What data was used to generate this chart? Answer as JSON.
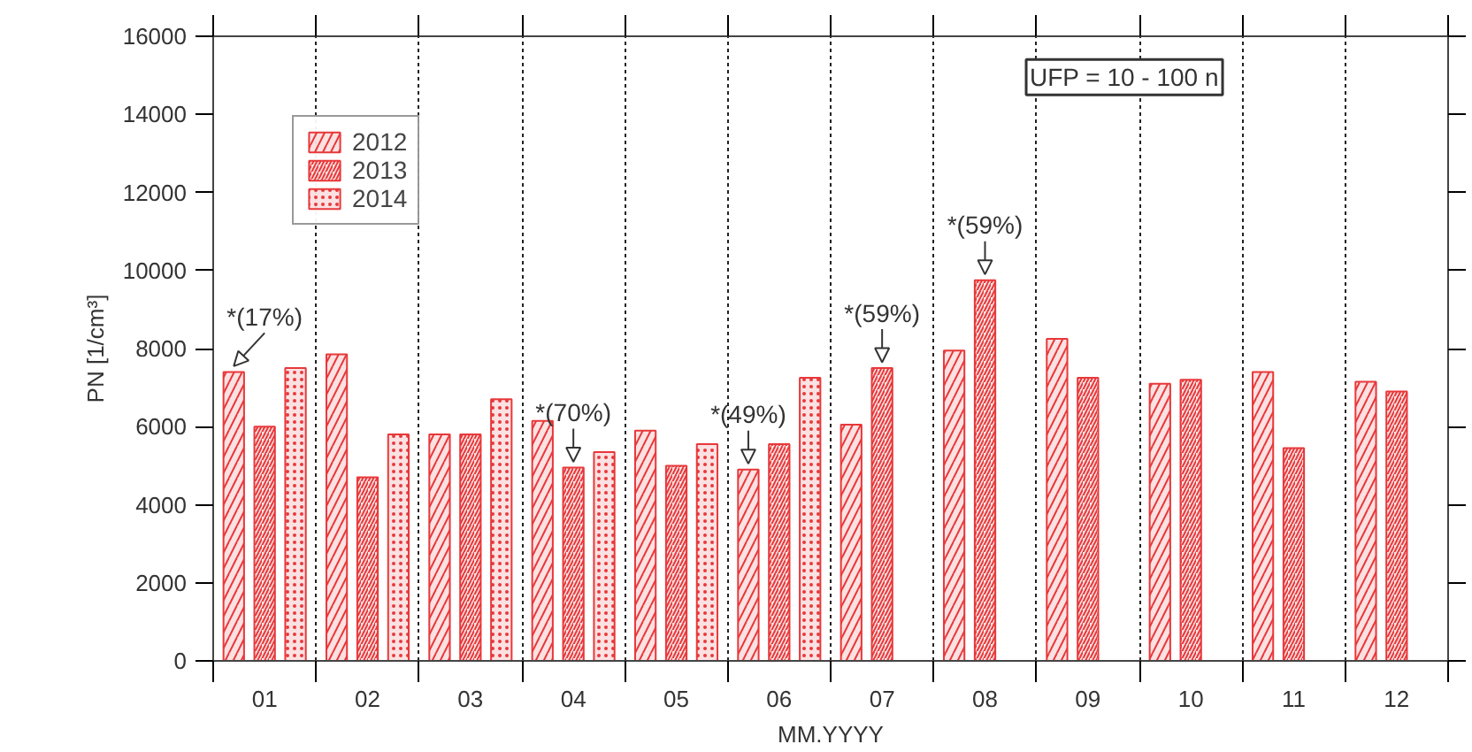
{
  "chart_data": {
    "type": "bar",
    "xlabel": "MM.YYYY",
    "ylabel": "PN [1/cm³]",
    "categories": [
      "01",
      "02",
      "03",
      "04",
      "05",
      "06",
      "07",
      "08",
      "09",
      "10",
      "11",
      "12"
    ],
    "series": [
      {
        "name": "2012",
        "color": "#e8383a",
        "values": [
          7400,
          7850,
          5800,
          6150,
          5900,
          4900,
          6050,
          7950,
          8250,
          7100,
          7400,
          7150
        ]
      },
      {
        "name": "2013",
        "color": "#e8383a",
        "values": [
          6000,
          4700,
          5800,
          4950,
          5000,
          5550,
          7500,
          9750,
          7250,
          7200,
          5450,
          6900
        ]
      },
      {
        "name": "2014",
        "color": "#e8383a",
        "values": [
          7500,
          5800,
          6700,
          5350,
          5550,
          7250,
          null,
          null,
          null,
          null,
          null,
          null
        ]
      }
    ],
    "ylim": [
      0,
      16000
    ],
    "yticks": [
      0,
      2000,
      4000,
      6000,
      8000,
      10000,
      12000,
      14000,
      16000
    ],
    "grid": "x",
    "legend": "top left",
    "annotations": [
      "*(17%)",
      {
        "text": "*(70%)",
        "x": "04",
        "y": 4950
      },
      "*(49%)",
      {
        "text": "*(59%)",
        "x": "07",
        "y": 7500
      },
      {
        "text": "*(59%)",
        "x": "08",
        "y": 9750
      },
      "UFP = 10 - 100 n"
    ]
  }
}
